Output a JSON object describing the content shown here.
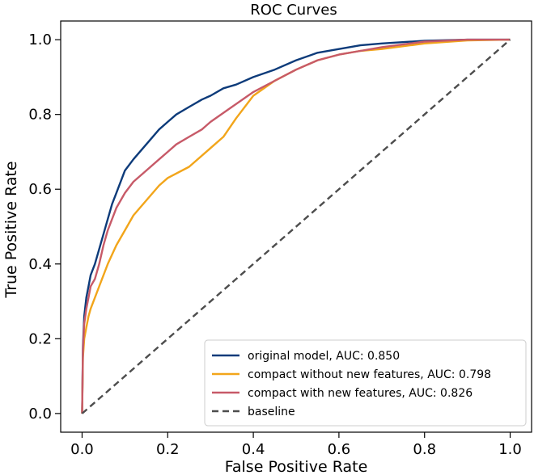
{
  "chart_data": {
    "type": "line",
    "title": "ROC Curves",
    "xlabel": "False Positive Rate",
    "ylabel": "True Positive Rate",
    "xlim": [
      -0.05,
      1.05
    ],
    "ylim": [
      -0.05,
      1.05
    ],
    "xticks": [
      0.0,
      0.2,
      0.4,
      0.6,
      0.8,
      1.0
    ],
    "yticks": [
      0.0,
      0.2,
      0.4,
      0.6,
      0.8,
      1.0
    ],
    "xtick_labels": [
      "0.0",
      "0.2",
      "0.4",
      "0.6",
      "0.8",
      "1.0"
    ],
    "ytick_labels": [
      "0.0",
      "0.2",
      "0.4",
      "0.6",
      "0.8",
      "1.0"
    ],
    "grid": false,
    "legend_position": "lower-right",
    "series": [
      {
        "name": "original model, AUC: 0.850",
        "color": "#0d3b7a",
        "dashed": false,
        "x": [
          0,
          0.002,
          0.005,
          0.01,
          0.015,
          0.02,
          0.03,
          0.04,
          0.05,
          0.06,
          0.07,
          0.08,
          0.1,
          0.12,
          0.15,
          0.18,
          0.2,
          0.22,
          0.25,
          0.28,
          0.3,
          0.33,
          0.36,
          0.4,
          0.45,
          0.5,
          0.55,
          0.6,
          0.65,
          0.7,
          0.8,
          0.9,
          1.0
        ],
        "y": [
          0,
          0.18,
          0.26,
          0.31,
          0.34,
          0.37,
          0.4,
          0.44,
          0.48,
          0.52,
          0.56,
          0.59,
          0.65,
          0.68,
          0.72,
          0.76,
          0.78,
          0.8,
          0.82,
          0.84,
          0.85,
          0.87,
          0.88,
          0.9,
          0.92,
          0.945,
          0.965,
          0.975,
          0.985,
          0.99,
          0.997,
          1.0,
          1.0
        ]
      },
      {
        "name": "compact without new features, AUC: 0.798",
        "color": "#f2a51a",
        "dashed": false,
        "x": [
          0,
          0.002,
          0.005,
          0.01,
          0.015,
          0.02,
          0.03,
          0.04,
          0.05,
          0.06,
          0.08,
          0.1,
          0.12,
          0.15,
          0.18,
          0.2,
          0.25,
          0.3,
          0.33,
          0.36,
          0.4,
          0.45,
          0.5,
          0.55,
          0.6,
          0.65,
          0.7,
          0.8,
          0.9,
          1.0
        ],
        "y": [
          0,
          0.15,
          0.2,
          0.23,
          0.26,
          0.28,
          0.31,
          0.34,
          0.37,
          0.4,
          0.45,
          0.49,
          0.53,
          0.57,
          0.61,
          0.63,
          0.66,
          0.71,
          0.74,
          0.79,
          0.85,
          0.89,
          0.92,
          0.945,
          0.96,
          0.97,
          0.975,
          0.99,
          0.998,
          1.0
        ]
      },
      {
        "name": "compact with new features, AUC: 0.826",
        "color": "#c75a68",
        "dashed": false,
        "x": [
          0,
          0.002,
          0.005,
          0.01,
          0.015,
          0.02,
          0.03,
          0.04,
          0.05,
          0.06,
          0.08,
          0.1,
          0.12,
          0.15,
          0.18,
          0.2,
          0.22,
          0.25,
          0.28,
          0.3,
          0.35,
          0.4,
          0.45,
          0.5,
          0.55,
          0.6,
          0.65,
          0.7,
          0.8,
          0.9,
          1.0
        ],
        "y": [
          0,
          0.17,
          0.24,
          0.28,
          0.31,
          0.34,
          0.36,
          0.4,
          0.45,
          0.49,
          0.55,
          0.59,
          0.62,
          0.65,
          0.68,
          0.7,
          0.72,
          0.74,
          0.76,
          0.78,
          0.82,
          0.86,
          0.89,
          0.92,
          0.945,
          0.96,
          0.97,
          0.98,
          0.995,
          1.0,
          1.0
        ]
      },
      {
        "name": "baseline",
        "color": "#4d4d4d",
        "dashed": true,
        "x": [
          0,
          1
        ],
        "y": [
          0,
          1
        ]
      }
    ]
  }
}
